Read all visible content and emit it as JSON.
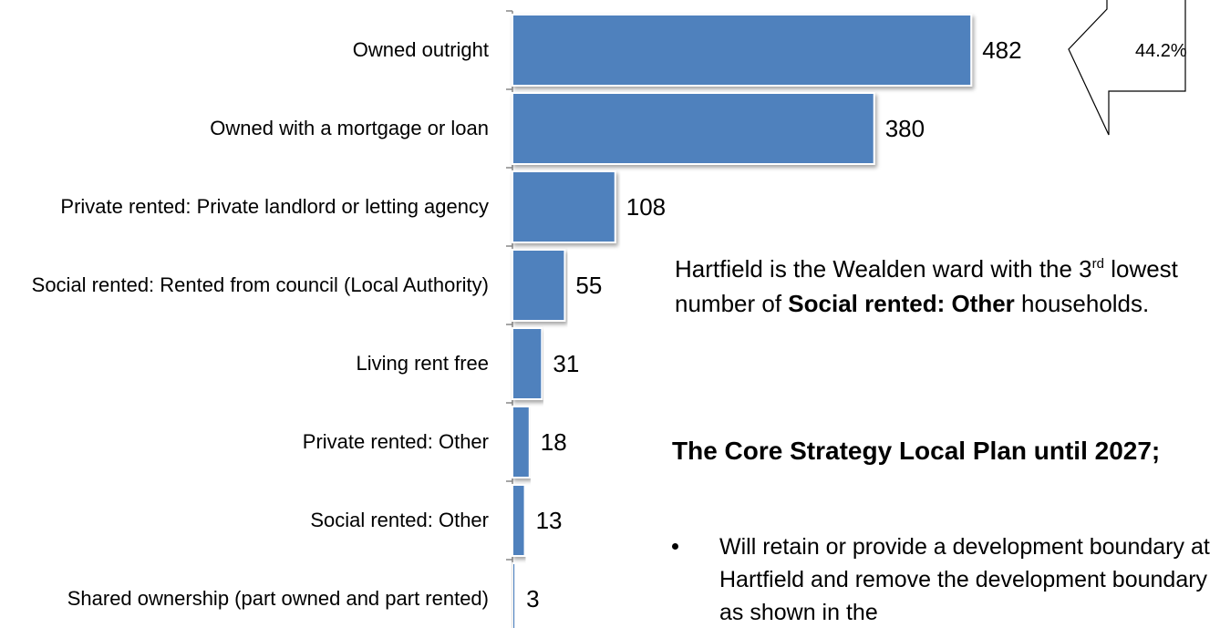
{
  "chart_data": {
    "type": "bar",
    "orientation": "horizontal",
    "categories": [
      "Owned outright",
      "Owned with a mortgage or loan",
      "Private rented: Private landlord or letting agency",
      "Social rented: Rented from council (Local Authority)",
      "Living rent free",
      "Private rented: Other",
      "Social rented: Other",
      "Shared ownership (part owned and part rented)"
    ],
    "values": [
      482,
      380,
      108,
      55,
      31,
      18,
      13,
      3
    ],
    "color": "#4f81bd",
    "xlim": [
      0,
      500
    ],
    "callout": "44.2%",
    "note": [
      "Hartfield is the Wealden ward with the 3",
      "rd",
      " lowest number of ",
      "Social rented: Other",
      " households."
    ],
    "heading": "The Core Strategy Local Plan until 2027;",
    "bullets": [
      "Will retain or provide a development boundary at Hartfield and remove the development boundary as shown in the"
    ]
  }
}
